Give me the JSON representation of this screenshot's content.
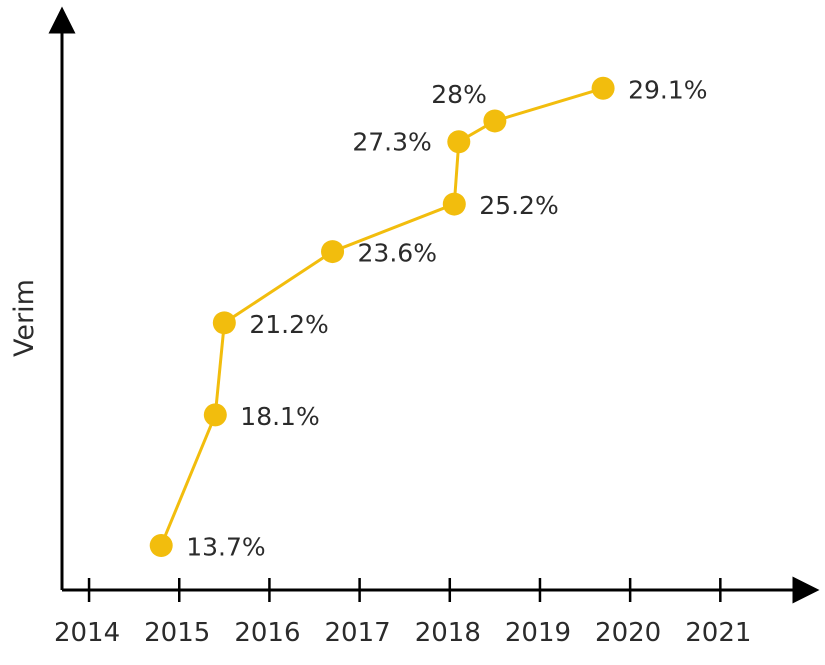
{
  "chart_data": {
    "type": "line",
    "title": "",
    "xlabel": "",
    "ylabel": "Verim",
    "x_ticks": [
      2014,
      2015,
      2016,
      2017,
      2018,
      2019,
      2020,
      2021
    ],
    "xlim": [
      2013.7,
      2021.95
    ],
    "ylim": [
      12.2,
      31.4
    ],
    "grid": false,
    "series": [
      {
        "name": "Verim",
        "color": "#F2BD0D",
        "points": [
          {
            "x": 2014.8,
            "y": 13.7,
            "label": "13.7%",
            "label_pos": "right"
          },
          {
            "x": 2015.4,
            "y": 18.1,
            "label": "18.1%",
            "label_pos": "right"
          },
          {
            "x": 2015.5,
            "y": 21.2,
            "label": "21.2%",
            "label_pos": "right"
          },
          {
            "x": 2016.7,
            "y": 23.6,
            "label": "23.6%",
            "label_pos": "right"
          },
          {
            "x": 2018.05,
            "y": 25.2,
            "label": "25.2%",
            "label_pos": "right"
          },
          {
            "x": 2018.1,
            "y": 27.3,
            "label": "27.3%",
            "label_pos": "left"
          },
          {
            "x": 2018.5,
            "y": 28.0,
            "label": "28%",
            "label_pos": "top-left"
          },
          {
            "x": 2019.7,
            "y": 29.1,
            "label": "29.1%",
            "label_pos": "right"
          }
        ]
      }
    ]
  }
}
